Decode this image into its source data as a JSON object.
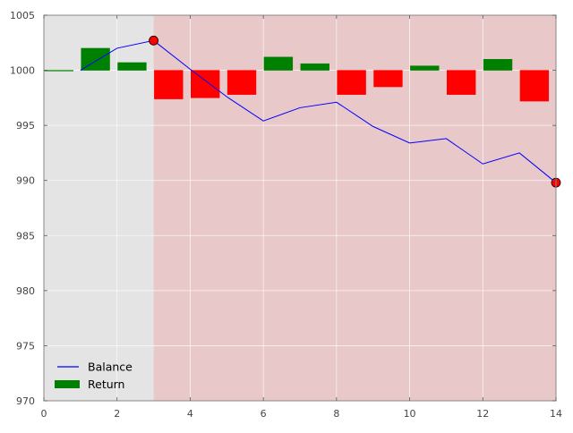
{
  "chart_data": {
    "type": "bar",
    "title": "",
    "xlabel": "",
    "ylabel": "",
    "xlim": [
      0,
      14
    ],
    "ylim": [
      970,
      1005
    ],
    "xticks": [
      "0",
      "2",
      "4",
      "6",
      "8",
      "10",
      "12",
      "14"
    ],
    "yticks": [
      "970",
      "975",
      "980",
      "985",
      "990",
      "995",
      "1000",
      "1005"
    ],
    "grid": true,
    "legend_position": "lower-left",
    "shaded_regions": [
      {
        "x_start": 0,
        "x_end": 3,
        "color": "#e4e4e4"
      },
      {
        "x_start": 3,
        "x_end": 14,
        "color": "#e8c8c8"
      }
    ],
    "series": [
      {
        "name": "Balance",
        "type": "line",
        "color": "#0000ff",
        "x": [
          1,
          2,
          3,
          4,
          5,
          6,
          7,
          8,
          9,
          10,
          11,
          12,
          13,
          14
        ],
        "values": [
          1000.0,
          1002.0,
          1002.7,
          1000.1,
          997.6,
          995.4,
          996.6,
          997.1,
          994.9,
          993.4,
          993.8,
          991.5,
          992.5,
          989.8
        ]
      },
      {
        "name": "Return",
        "type": "bar",
        "color": "#008000",
        "negative_color": "#ff0000",
        "baseline": 1000,
        "x": [
          0,
          1,
          2,
          3,
          4,
          5,
          6,
          7,
          8,
          9,
          10,
          11,
          12,
          13
        ],
        "values": [
          0.0,
          2.0,
          0.7,
          -2.6,
          -2.5,
          -2.2,
          1.2,
          0.6,
          -2.2,
          -1.5,
          0.4,
          -2.2,
          1.0,
          -2.8
        ]
      }
    ],
    "markers": [
      {
        "x": 3,
        "y": 1002.7,
        "color": "#ff0000"
      },
      {
        "x": 14,
        "y": 989.8,
        "color": "#ff0000"
      }
    ]
  }
}
